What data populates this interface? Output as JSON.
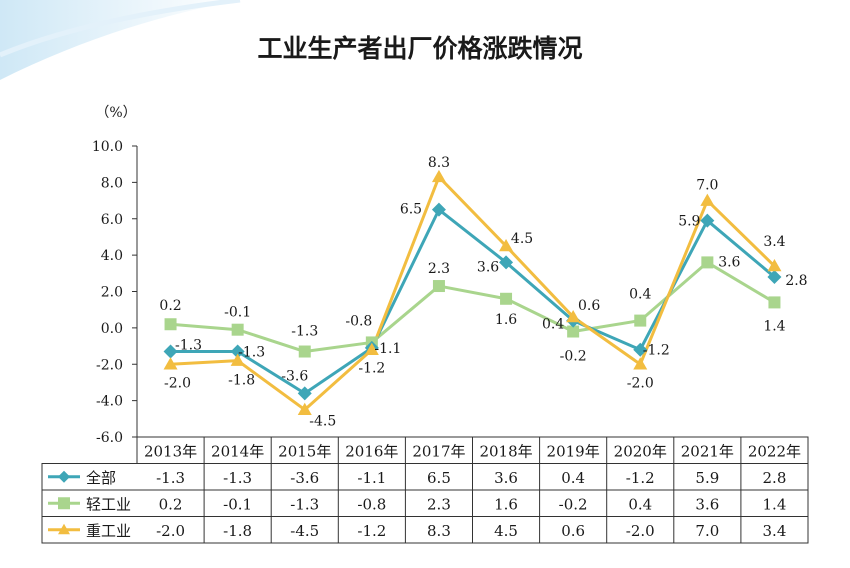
{
  "chart_data": {
    "type": "line",
    "title": "工业生产者出厂价格涨跌情况",
    "ylabel": "（%）",
    "categories": [
      "2013年",
      "2014年",
      "2015年",
      "2016年",
      "2017年",
      "2018年",
      "2019年",
      "2020年",
      "2021年",
      "2022年"
    ],
    "ylim": [
      -6.0,
      10.0
    ],
    "yticks": [
      "10.0",
      "8.0",
      "6.0",
      "4.0",
      "2.0",
      "0.0",
      "-2.0",
      "-4.0",
      "-6.0"
    ],
    "grid": false,
    "legend": "table-left",
    "series": [
      {
        "name": "全部",
        "color": "#3ea6b7",
        "marker": "diamond",
        "values": [
          -1.3,
          -1.3,
          -3.6,
          -1.1,
          6.5,
          3.6,
          0.4,
          -1.2,
          5.9,
          2.8
        ],
        "labels": [
          "-1.3",
          "-1.3",
          "-3.6",
          "-1.1",
          "6.5",
          "3.6",
          "0.4",
          "-1.2",
          "5.9",
          "2.8"
        ]
      },
      {
        "name": "轻工业",
        "color": "#a9d58d",
        "marker": "square",
        "values": [
          0.2,
          -0.1,
          -1.3,
          -0.8,
          2.3,
          1.6,
          -0.2,
          0.4,
          3.6,
          1.4
        ],
        "labels": [
          "0.2",
          "-0.1",
          "-1.3",
          "-0.8",
          "2.3",
          "1.6",
          "-0.2",
          "0.4",
          "3.6",
          "1.4"
        ]
      },
      {
        "name": "重工业",
        "color": "#f2bd40",
        "marker": "triangle",
        "values": [
          -2.0,
          -1.8,
          -4.5,
          -1.2,
          8.3,
          4.5,
          0.6,
          -2.0,
          7.0,
          3.4
        ],
        "labels": [
          "-2.0",
          "-1.8",
          "-4.5",
          "-1.2",
          "8.3",
          "4.5",
          "0.6",
          "-2.0",
          "7.0",
          "3.4"
        ]
      }
    ]
  }
}
